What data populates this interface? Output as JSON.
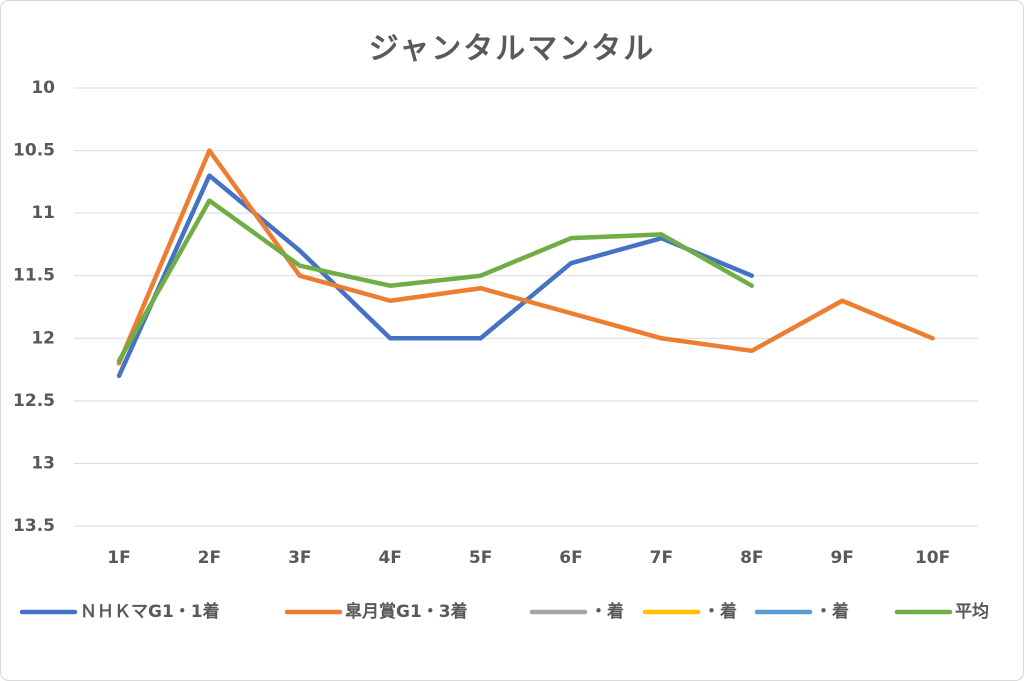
{
  "chart_data": {
    "type": "line",
    "title": "ジャンタルマンタル",
    "categories": [
      "1F",
      "2F",
      "3F",
      "4F",
      "5F",
      "6F",
      "7F",
      "8F",
      "9F",
      "10F"
    ],
    "series": [
      {
        "name": "ＮＨＫマG1・1着",
        "color": "#4472c4",
        "values": [
          12.3,
          10.7,
          11.3,
          12.0,
          12.0,
          11.4,
          11.2,
          11.5,
          null,
          null
        ]
      },
      {
        "name": "皐月賞G1・3着",
        "color": "#ed7d31",
        "values": [
          12.2,
          10.5,
          11.5,
          11.7,
          11.6,
          11.8,
          12.0,
          12.1,
          11.7,
          12.0
        ]
      },
      {
        "name": "・着",
        "color": "#a5a5a5",
        "values": [
          null,
          null,
          null,
          null,
          null,
          null,
          null,
          null,
          null,
          null
        ]
      },
      {
        "name": "・着",
        "color": "#ffc000",
        "values": [
          null,
          null,
          null,
          null,
          null,
          null,
          null,
          null,
          null,
          null
        ]
      },
      {
        "name": "・着",
        "color": "#5b9bd5",
        "values": [
          null,
          null,
          null,
          null,
          null,
          null,
          null,
          null,
          null,
          null
        ]
      },
      {
        "name": "平均",
        "color": "#70ad47",
        "values": [
          12.18,
          10.9,
          11.42,
          11.58,
          11.5,
          11.2,
          11.17,
          11.58,
          null,
          null
        ]
      }
    ],
    "ylim": [
      10,
      13.5
    ],
    "inverted": true,
    "yticks": [
      10,
      10.5,
      11,
      11.5,
      12,
      12.5,
      13,
      13.5
    ],
    "grid": true,
    "legend": "bottom"
  }
}
